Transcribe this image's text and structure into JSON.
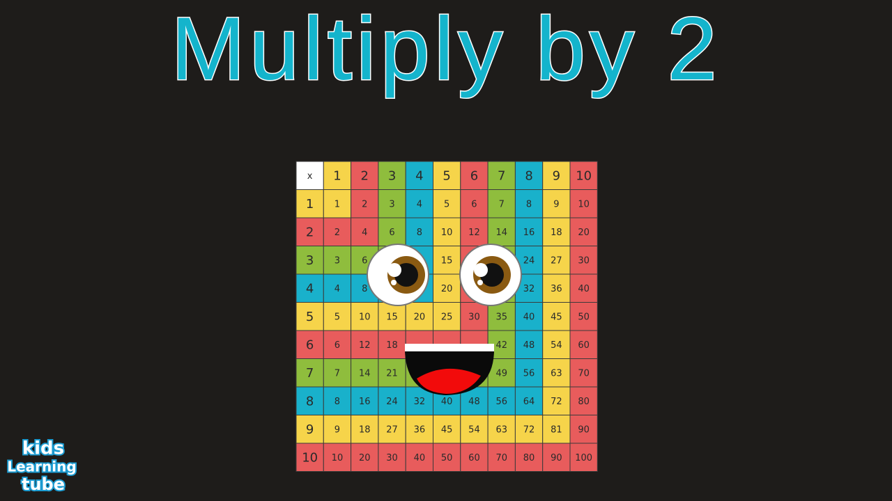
{
  "header": {
    "title": "Multiply by 2"
  },
  "table": {
    "corner": "x",
    "columns": [
      1,
      2,
      3,
      4,
      5,
      6,
      7,
      8,
      9,
      10
    ],
    "rows": [
      {
        "header": 1,
        "cells": [
          1,
          2,
          3,
          4,
          5,
          6,
          7,
          8,
          9,
          10
        ]
      },
      {
        "header": 2,
        "cells": [
          2,
          4,
          6,
          8,
          10,
          12,
          14,
          16,
          18,
          20
        ]
      },
      {
        "header": 3,
        "cells": [
          3,
          6,
          null,
          null,
          15,
          null,
          null,
          24,
          27,
          30
        ]
      },
      {
        "header": 4,
        "cells": [
          4,
          8,
          null,
          null,
          20,
          null,
          null,
          32,
          36,
          40
        ]
      },
      {
        "header": 5,
        "cells": [
          5,
          10,
          15,
          20,
          25,
          30,
          35,
          40,
          45,
          50
        ]
      },
      {
        "header": 6,
        "cells": [
          6,
          12,
          18,
          null,
          null,
          null,
          42,
          48,
          54,
          60
        ]
      },
      {
        "header": 7,
        "cells": [
          7,
          14,
          21,
          null,
          null,
          null,
          49,
          56,
          63,
          70
        ]
      },
      {
        "header": 8,
        "cells": [
          8,
          16,
          24,
          32,
          40,
          48,
          56,
          64,
          72,
          80
        ]
      },
      {
        "header": 9,
        "cells": [
          9,
          18,
          27,
          36,
          45,
          54,
          63,
          72,
          81,
          90
        ]
      },
      {
        "header": 10,
        "cells": [
          10,
          20,
          30,
          40,
          50,
          60,
          70,
          80,
          90,
          100
        ]
      }
    ]
  },
  "logo": {
    "line1": "kids",
    "line2": "Learning",
    "line3": "tube"
  }
}
